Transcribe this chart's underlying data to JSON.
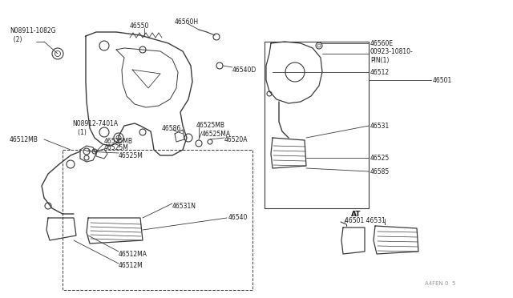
{
  "bg_color": "#ffffff",
  "line_color": "#3a3a3a",
  "text_color": "#1a1a1a",
  "wm_color": "#999999",
  "labels": {
    "n08911": "N08911-1082G\n  (2)",
    "n08912": "N08912-7401A\n   (1)",
    "p46550": "46550",
    "p46560H": "46560H",
    "p46540D": "46540D",
    "p46525MB_a": "46525MB",
    "p46586": "46586",
    "p46525MA": "46525MA",
    "p46520A": "46520A",
    "p46525MB_b": "46525MB",
    "p46525M_a": "46525M",
    "p46512MB": "46512MB",
    "p46525M_b": "46525M",
    "p46531N": "46531N",
    "p46540": "46540",
    "p46512MA": "46512MA",
    "p46512M": "46512M",
    "p46560E": "46560E",
    "p00923": "00923-10810-\nPIN(1)",
    "p46512": "46512",
    "p46531": "46531",
    "p46525": "46525",
    "p46585": "46585",
    "p46501": "46501",
    "AT": "AT",
    "p46501_AT": "46501 46531",
    "watermark": "A4FEN 0  5"
  }
}
